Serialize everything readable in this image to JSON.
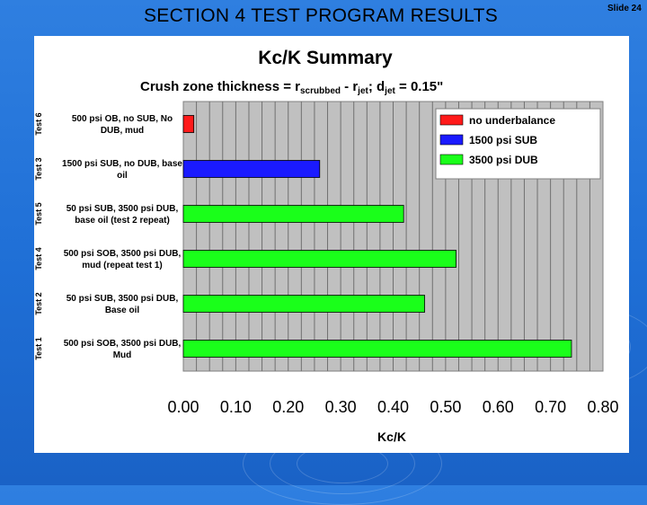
{
  "slide": {
    "title": "SECTION 4 TEST PROGRAM RESULTS",
    "number_label": "Slide 24"
  },
  "chart_data": {
    "type": "bar",
    "orientation": "horizontal",
    "title": "Kc/K Summary",
    "subtitle": {
      "prefix": "Crush zone thickness = r",
      "sub1": "scrubbed",
      "mid": " - r",
      "sub2": "jet",
      "sep": "; d",
      "sub3": "jet",
      "suffix": " = 0.15\""
    },
    "xlabel": "Kc/K",
    "xlim": [
      0,
      0.8
    ],
    "xticks": [
      "0.00",
      "0.10",
      "0.20",
      "0.30",
      "0.40",
      "0.50",
      "0.60",
      "0.70",
      "0.80"
    ],
    "grid": true,
    "legend_position": "top-right",
    "colors": {
      "no underbalance": "#ff1a1a",
      "1500 psi SUB": "#1a1aff",
      "3500 psi DUB": "#1aff1a"
    },
    "legend": [
      {
        "label": "no underbalance",
        "color": "#ff1a1a"
      },
      {
        "label": "1500 psi SUB",
        "color": "#1a1aff"
      },
      {
        "label": "3500 psi DUB",
        "color": "#1aff1a"
      }
    ],
    "categories": [
      {
        "test": "Test 6",
        "lines": [
          "500 psi OB, no SUB, No",
          "DUB, mud"
        ],
        "value": 0.02,
        "series": "no underbalance"
      },
      {
        "test": "Test 3",
        "lines": [
          "1500 psi SUB, no DUB, base",
          "oil"
        ],
        "value": 0.26,
        "series": "1500 psi SUB"
      },
      {
        "test": "Test 5",
        "lines": [
          "50 psi SUB, 3500 psi DUB,",
          "base oil (test 2 repeat)"
        ],
        "value": 0.42,
        "series": "3500 psi DUB"
      },
      {
        "test": "Test 4",
        "lines": [
          "500 psi SOB, 3500 psi DUB,",
          "mud (repeat test 1)"
        ],
        "value": 0.52,
        "series": "3500 psi DUB"
      },
      {
        "test": "Test 2",
        "lines": [
          "50 psi SUB, 3500 psi DUB,",
          "Base oil"
        ],
        "value": 0.46,
        "series": "3500 psi DUB"
      },
      {
        "test": "Test 1",
        "lines": [
          "500 psi SOB, 3500 psi DUB,",
          "Mud"
        ],
        "value": 0.74,
        "series": "3500 psi DUB"
      }
    ]
  }
}
